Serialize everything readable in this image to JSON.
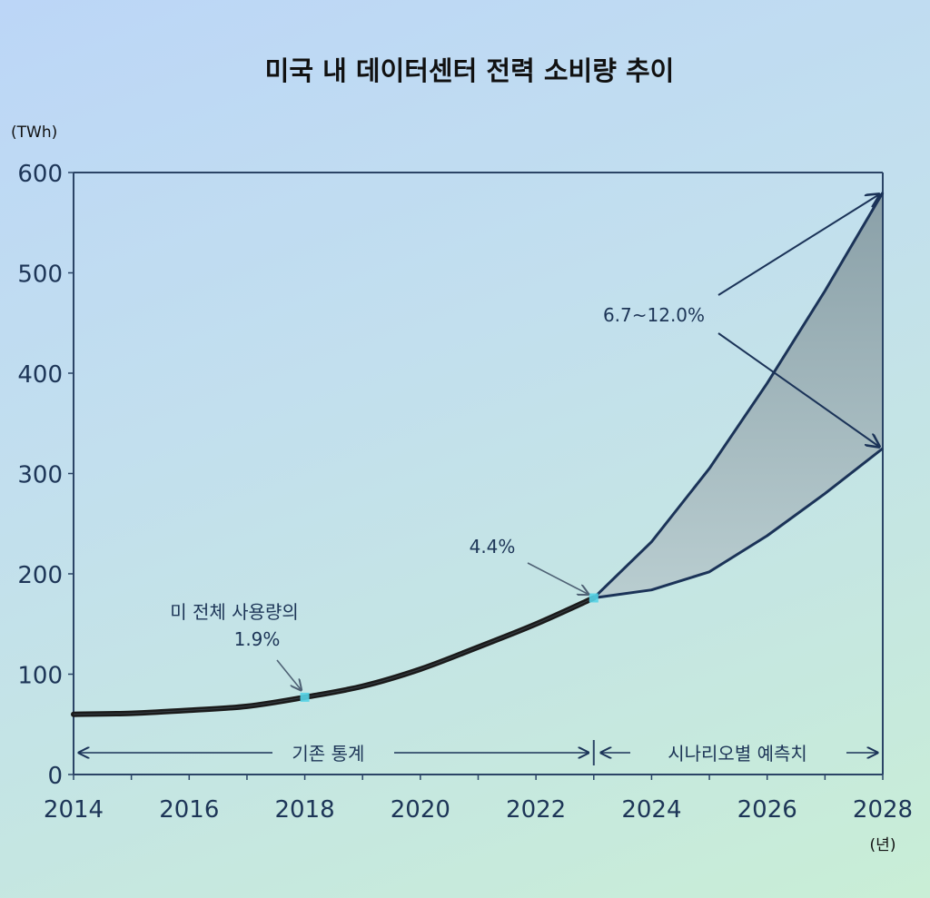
{
  "chart_data": {
    "type": "line",
    "title": "미국 내 데이터센터 전력 소비량 추이",
    "ylabel": "(TWh)",
    "xlabel": "(년)",
    "ylim": [
      0,
      600
    ],
    "xlim": [
      2014,
      2028
    ],
    "yticks": [
      "0",
      "100",
      "200",
      "300",
      "400",
      "500",
      "600"
    ],
    "ytick_values": [
      0,
      100,
      200,
      300,
      400,
      500,
      600
    ],
    "xticks": [
      "2014",
      "2016",
      "2018",
      "2020",
      "2022",
      "2024",
      "2026",
      "2028"
    ],
    "xtick_values": [
      2014,
      2016,
      2018,
      2020,
      2022,
      2024,
      2026,
      2028
    ],
    "minor_xtick_values": [
      2015,
      2017,
      2019,
      2021,
      2023,
      2025,
      2027
    ],
    "grid": false,
    "series": [
      {
        "name": "historical",
        "x": [
          2014,
          2015,
          2016,
          2017,
          2018,
          2019,
          2020,
          2021,
          2022,
          2023
        ],
        "values": [
          60,
          61,
          64,
          68,
          77,
          88,
          105,
          127,
          150,
          176
        ],
        "color": "#1a1a1a"
      },
      {
        "name": "scenario-high",
        "x": [
          2023,
          2024,
          2025,
          2026,
          2027,
          2028
        ],
        "values": [
          176,
          232,
          305,
          390,
          482,
          580
        ],
        "color": "#1b3358"
      },
      {
        "name": "scenario-low",
        "x": [
          2023,
          2024,
          2025,
          2026,
          2027,
          2028
        ],
        "values": [
          176,
          184,
          202,
          238,
          280,
          325
        ],
        "color": "#1b3358"
      }
    ],
    "annotations": [
      {
        "id": "share-2018",
        "line1": "미 전체 사용량의",
        "line2": "1.9%",
        "x": 2018,
        "y": 77
      },
      {
        "id": "share-2023",
        "text": "4.4%",
        "x": 2023,
        "y": 176
      },
      {
        "id": "share-2028",
        "text": "6.7~12.0%",
        "targets": [
          580,
          325
        ],
        "x": 2028
      }
    ],
    "ranges": [
      {
        "label": "기존 통계",
        "from": 2014,
        "to": 2023
      },
      {
        "label": "시나리오별 예측치",
        "from": 2023,
        "to": 2028
      }
    ],
    "colors": {
      "axis": "#2b4466",
      "band_top": "#8ea4ab",
      "band_bottom": "#b4c8cb",
      "marker": "#55d3e6",
      "arrow": "#4f6275"
    }
  }
}
